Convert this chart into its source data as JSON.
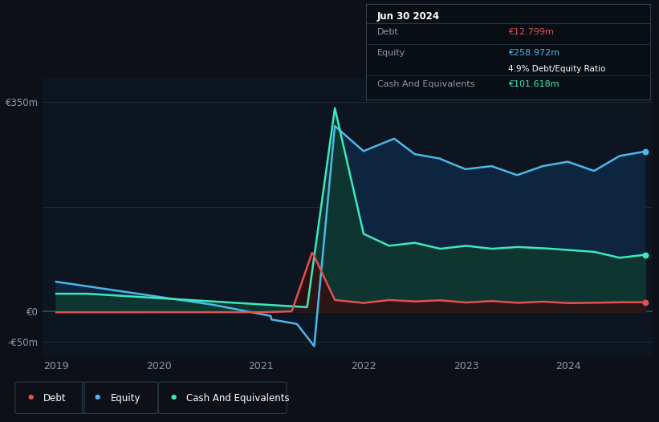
{
  "bg_color": "#0d1117",
  "plot_bg_color": "#0d1520",
  "grid_color": "#1e2d3d",
  "ylabel_color": "#8899aa",
  "xlabel_color": "#8899aa",
  "ylim": [
    -75,
    390
  ],
  "debt_color": "#e05252",
  "equity_color": "#4db8e8",
  "cash_color": "#3de8c0",
  "fill_equity_color": "#0e2540",
  "fill_cash_color": "#0e3530",
  "fill_debt_color": "#3a0a0a",
  "tooltip_bg": "#080e14",
  "tooltip_border": "#2a3a4a",
  "tooltip_title": "Jun 30 2024",
  "tooltip_debt_label": "Debt",
  "tooltip_debt_value": "€12.799m",
  "tooltip_equity_label": "Equity",
  "tooltip_equity_value": "€258.972m",
  "tooltip_ratio": "4.9% Debt/Equity Ratio",
  "tooltip_cash_label": "Cash And Equivalents",
  "tooltip_cash_value": "€101.618m",
  "legend_debt": "Debt",
  "legend_equity": "Equity",
  "legend_cash": "Cash And Equivalents"
}
